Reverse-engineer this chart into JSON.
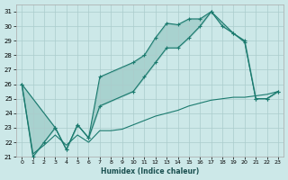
{
  "title": "",
  "xlabel": "Humidex (Indice chaleur)",
  "bg_color": "#cce8e8",
  "grid_color": "#aacccc",
  "line_color": "#1a7a6e",
  "xlim": [
    -0.5,
    23.5
  ],
  "ylim": [
    21,
    31.5
  ],
  "xticks": [
    0,
    1,
    2,
    3,
    4,
    5,
    6,
    7,
    8,
    9,
    10,
    11,
    12,
    13,
    14,
    15,
    16,
    17,
    18,
    19,
    20,
    21,
    22,
    23
  ],
  "yticks": [
    21,
    22,
    23,
    24,
    25,
    26,
    27,
    28,
    29,
    30,
    31
  ],
  "series1_x": [
    0,
    1,
    2,
    3,
    4,
    5,
    6,
    7,
    10,
    11,
    12,
    13,
    14,
    15,
    16,
    17,
    18,
    19,
    20,
    21,
    22,
    23
  ],
  "series1_y": [
    26.0,
    21.0,
    22.0,
    23.0,
    21.5,
    23.2,
    22.3,
    26.5,
    27.5,
    28.0,
    29.2,
    30.2,
    30.1,
    30.5,
    30.5,
    31.0,
    30.0,
    29.5,
    29.0,
    25.0,
    25.0,
    25.5
  ],
  "series2_x": [
    0,
    3,
    4,
    5,
    6,
    7,
    10,
    11,
    12,
    13,
    14,
    15,
    16,
    17,
    19,
    20,
    21,
    22,
    23
  ],
  "series2_y": [
    26.0,
    23.0,
    21.5,
    23.2,
    22.3,
    24.5,
    25.5,
    26.5,
    27.5,
    28.5,
    28.5,
    29.2,
    30.0,
    31.0,
    29.5,
    28.9,
    25.0,
    25.0,
    25.5
  ],
  "series3_x": [
    0,
    1,
    2,
    3,
    4,
    5,
    6,
    7,
    8,
    9,
    10,
    11,
    12,
    13,
    14,
    15,
    16,
    17,
    18,
    19,
    20,
    21,
    22,
    23
  ],
  "series3_y": [
    26.0,
    21.2,
    21.8,
    22.5,
    21.8,
    22.5,
    22.0,
    22.8,
    22.8,
    22.9,
    23.2,
    23.5,
    23.8,
    24.0,
    24.2,
    24.5,
    24.7,
    24.9,
    25.0,
    25.1,
    25.1,
    25.2,
    25.3,
    25.5
  ]
}
